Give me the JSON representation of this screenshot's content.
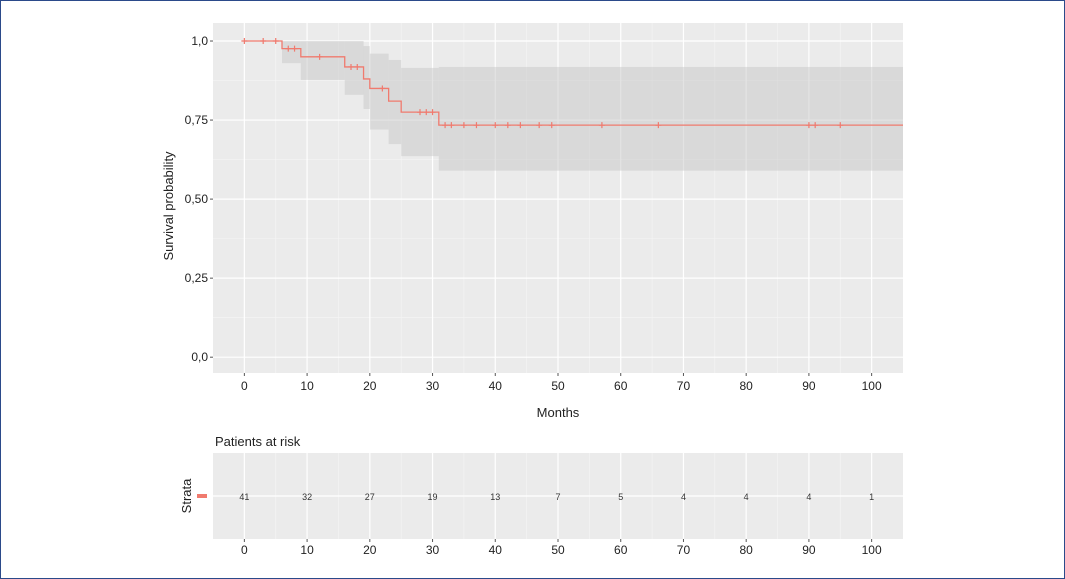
{
  "chart_data": [
    {
      "type": "line",
      "subtype": "kaplan-meier",
      "xlabel": "Months",
      "ylabel": "Survival probability",
      "xlim": [
        -5,
        105
      ],
      "ylim": [
        -0.05,
        1.057
      ],
      "x_ticks": [
        0,
        10,
        20,
        30,
        40,
        50,
        60,
        70,
        80,
        90,
        100
      ],
      "y_ticks": [
        {
          "value": 0,
          "label": "0,0"
        },
        {
          "value": 0.25,
          "label": "0,25"
        },
        {
          "value": 0.5,
          "label": "0,50"
        },
        {
          "value": 0.75,
          "label": "0,75"
        },
        {
          "value": 1,
          "label": "1,0"
        }
      ],
      "grid": true,
      "line_color": "#f07a6e",
      "ci_color": "#c8c8c8",
      "steps": [
        {
          "time": 0,
          "surv": 1.0,
          "lower": 1.0,
          "upper": 1.0
        },
        {
          "time": 6,
          "surv": 0.976,
          "lower": 0.93,
          "upper": 1.0
        },
        {
          "time": 9,
          "surv": 0.95,
          "lower": 0.877,
          "upper": 1.0
        },
        {
          "time": 16,
          "surv": 0.918,
          "lower": 0.83,
          "upper": 1.0
        },
        {
          "time": 19,
          "surv": 0.88,
          "lower": 0.785,
          "upper": 0.984
        },
        {
          "time": 20,
          "surv": 0.85,
          "lower": 0.72,
          "upper": 0.96
        },
        {
          "time": 23,
          "surv": 0.81,
          "lower": 0.674,
          "upper": 0.94
        },
        {
          "time": 25,
          "surv": 0.775,
          "lower": 0.636,
          "upper": 0.915
        },
        {
          "time": 31,
          "surv": 0.734,
          "lower": 0.59,
          "upper": 0.918
        }
      ],
      "end_time": 105,
      "censored_times": [
        0,
        3,
        5,
        7,
        8,
        12,
        17,
        18,
        22,
        28,
        29,
        30,
        32,
        33,
        35,
        37,
        40,
        42,
        44,
        47,
        49,
        57,
        66,
        90,
        91,
        95
      ]
    },
    {
      "type": "table",
      "title": "Patients at risk",
      "ylabel": "Strata",
      "strata_color": "#f07a6e",
      "times": [
        0,
        10,
        20,
        30,
        40,
        50,
        60,
        70,
        80,
        90,
        100
      ],
      "at_risk": [
        41,
        32,
        27,
        19,
        13,
        7,
        5,
        4,
        4,
        4,
        1
      ]
    }
  ]
}
